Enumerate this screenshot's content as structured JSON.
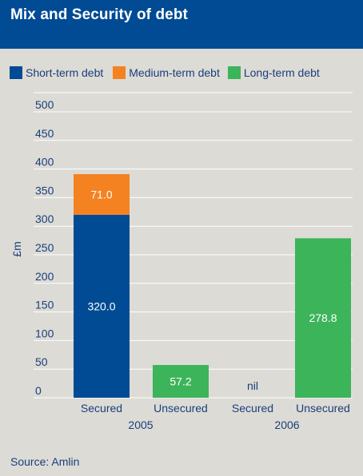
{
  "header": {
    "title": "Mix and Security of debt"
  },
  "colors": {
    "header_bg": "#004b93",
    "short_term": "#004b93",
    "medium_term": "#f58220",
    "long_term": "#3cb45a",
    "text": "#1a3f7a",
    "background": "#dcdbd6"
  },
  "legend": [
    {
      "label": "Short-term debt",
      "color": "#004b93"
    },
    {
      "label": "Medium-term debt",
      "color": "#f58220"
    },
    {
      "label": "Long-term debt",
      "color": "#3cb45a"
    }
  ],
  "chart_data": {
    "type": "bar",
    "stacked": true,
    "ylabel": "£m",
    "ylim": [
      0,
      500
    ],
    "yticks": [
      0,
      50,
      100,
      150,
      200,
      250,
      300,
      350,
      400,
      450,
      500
    ],
    "grid": true,
    "legend_position": "top",
    "groups": [
      "2005",
      "2006"
    ],
    "categories": [
      "Secured",
      "Unsecured",
      "Secured",
      "Unsecured"
    ],
    "category_groups": [
      "2005",
      "2005",
      "2006",
      "2006"
    ],
    "series": [
      {
        "name": "Short-term debt",
        "values": [
          320.0,
          0,
          0,
          0
        ],
        "labels": [
          "320.0",
          "",
          "",
          ""
        ]
      },
      {
        "name": "Medium-term debt",
        "values": [
          71.0,
          0,
          0,
          0
        ],
        "labels": [
          "71.0",
          "",
          "",
          ""
        ]
      },
      {
        "name": "Long-term debt",
        "values": [
          0,
          57.2,
          0,
          278.8
        ],
        "labels": [
          "",
          "57.2",
          "",
          "278.8"
        ]
      }
    ],
    "annotations": [
      {
        "category_index": 2,
        "text": "nil"
      }
    ]
  },
  "source": "Source: Amlin"
}
